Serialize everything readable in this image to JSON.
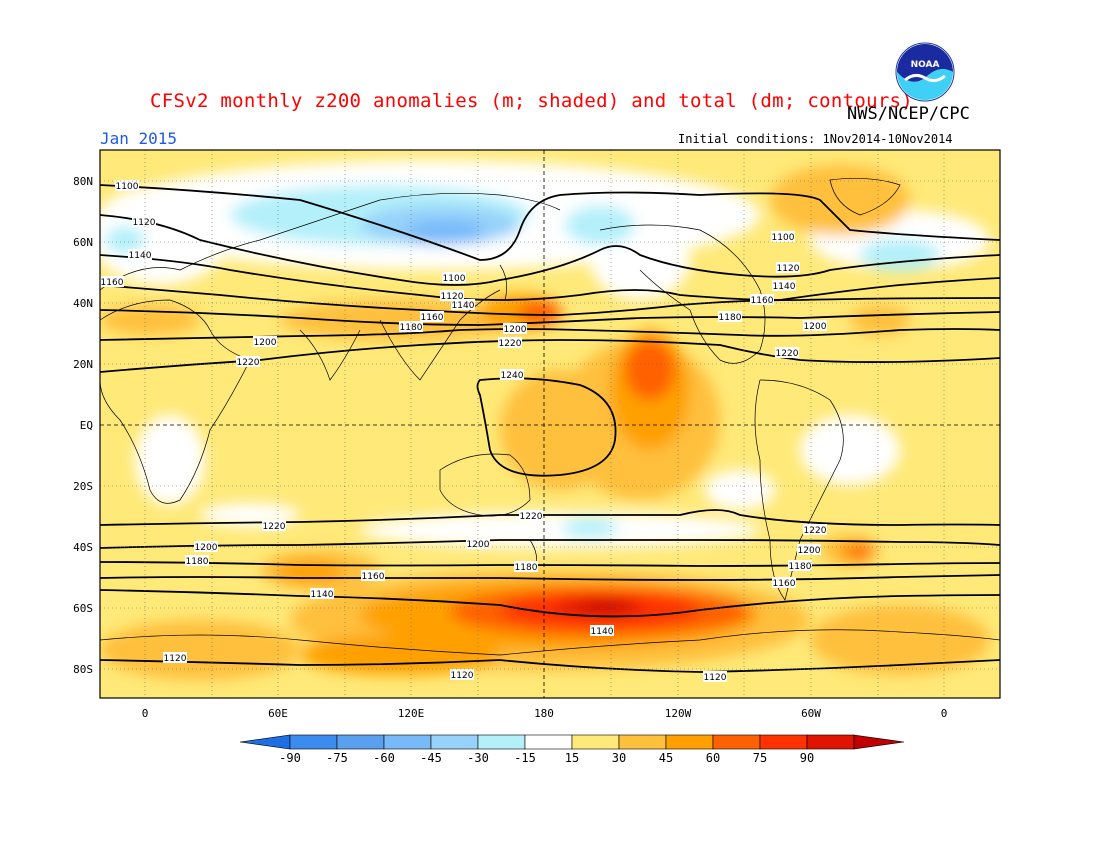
{
  "header": {
    "title": "CFSv2 monthly z200 anomalies (m; shaded) and total (dm; contours)",
    "agency": "NWS/NCEP/CPC",
    "month": "Jan 2015",
    "initial_conditions": "Initial conditions: 1Nov2014-10Nov2014",
    "logo_text": "NOAA"
  },
  "map": {
    "lat_labels": [
      "80N",
      "60N",
      "40N",
      "20N",
      "EQ",
      "20S",
      "40S",
      "60S",
      "80S"
    ],
    "lon_labels": [
      "0",
      "60E",
      "120E",
      "180",
      "120W",
      "60W",
      "0"
    ],
    "contour_labels": [
      "1100",
      "1120",
      "1140",
      "1160",
      "1180",
      "1200",
      "1220",
      "1240"
    ]
  },
  "colorbar": {
    "levels": [
      "-90",
      "-75",
      "-60",
      "-45",
      "-30",
      "-15",
      "15",
      "30",
      "45",
      "60",
      "75",
      "90"
    ],
    "colors": [
      "#1e6ee6",
      "#3c8cf0",
      "#5aa0f0",
      "#78b9fa",
      "#96d2fa",
      "#b4f0fa",
      "#ffffff",
      "#ffe978",
      "#ffc03c",
      "#ffa000",
      "#ff6000",
      "#ff3200",
      "#e11400",
      "#c00000"
    ]
  },
  "chart_data": {
    "type": "heatmap",
    "title": "CFSv2 monthly z200 anomalies (m; shaded) and total (dm; contours)",
    "shading_variable": "z200 anomaly (m)",
    "contour_variable": "z200 total (dm)",
    "contour_levels": [
      1100,
      1120,
      1140,
      1160,
      1180,
      1200,
      1220,
      1240
    ],
    "shading_levels": [
      -90,
      -75,
      -60,
      -45,
      -30,
      -15,
      15,
      30,
      45,
      60,
      75,
      90
    ],
    "valid_month": "Jan 2015",
    "xlim": [
      "20W",
      "20E"
    ],
    "ylim": [
      "90S",
      "90N"
    ]
  }
}
